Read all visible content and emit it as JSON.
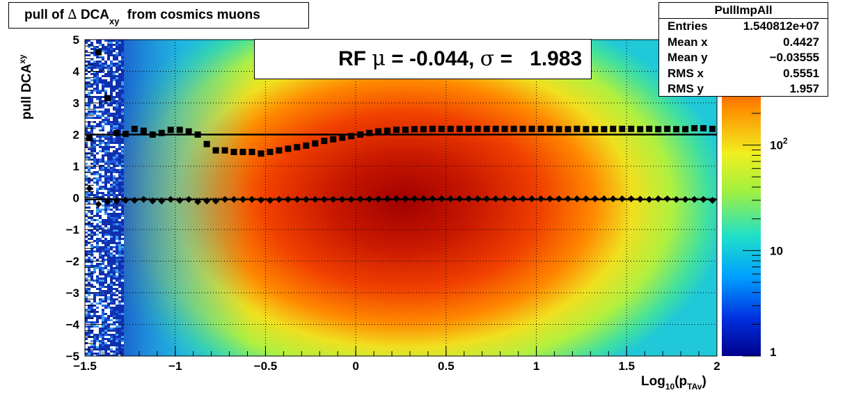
{
  "title": {
    "text": "pull of",
    "delta": "∆",
    "main": "DCA",
    "sub": "xy",
    "suffix": "from cosmics muons"
  },
  "stats": {
    "name": "PullImpAll",
    "rows": [
      {
        "label": "Entries",
        "value": "1.540812e+07"
      },
      {
        "label": "Mean x",
        "value": "0.4427"
      },
      {
        "label": "Mean y",
        "value": "−0.03555"
      },
      {
        "label": "RMS x",
        "value": "0.5551"
      },
      {
        "label": "RMS y",
        "value": "1.957"
      }
    ]
  },
  "legend": {
    "prefix": "RF",
    "mu": "μ",
    "mid": "= -0.044,",
    "sigma": "σ",
    "tail": "=   1.983"
  },
  "axes": {
    "xlabel_main": "Log",
    "xlabel_sub1": "10",
    "xlabel_open": "(p",
    "xlabel_sub2": "TAv",
    "xlabel_close": ")",
    "ylabel_main": "pull DCA",
    "ylabel_sub": "xy"
  },
  "colors": {
    "grid": "#000000",
    "markers": "#000000"
  },
  "chart_data": {
    "type": "heatmap",
    "xlim": [
      -1.5,
      2
    ],
    "ylim": [
      -5,
      5
    ],
    "zscale": "log",
    "zlim": [
      1,
      1000
    ],
    "grid": true,
    "x_ticks": [
      "−1.5",
      "−1",
      "−0.5",
      "0",
      "0.5",
      "1",
      "1.5",
      "2"
    ],
    "y_ticks": [
      "−5",
      "−4",
      "−3",
      "−2",
      "−1",
      "0",
      "1",
      "2",
      "3",
      "4",
      "5"
    ],
    "z_ticks": [
      "1",
      "10",
      "10^2"
    ],
    "series": [
      {
        "marker": "square",
        "x": [
          -1.475,
          -1.425,
          -1.375,
          -1.325,
          -1.275,
          -1.225,
          -1.175,
          -1.125,
          -1.075,
          -1.025,
          -0.975,
          -0.925,
          -0.875,
          -0.825,
          -0.775,
          -0.725,
          -0.675,
          -0.625,
          -0.575,
          -0.525,
          -0.475,
          -0.425,
          -0.375,
          -0.325,
          -0.275,
          -0.225,
          -0.175,
          -0.125,
          -0.075,
          -0.025,
          0.025,
          0.075,
          0.125,
          0.175,
          0.225,
          0.275,
          0.325,
          0.375,
          0.425,
          0.475,
          0.525,
          0.575,
          0.625,
          0.675,
          0.725,
          0.775,
          0.825,
          0.875,
          0.925,
          0.975,
          1.025,
          1.075,
          1.125,
          1.175,
          1.225,
          1.275,
          1.325,
          1.375,
          1.425,
          1.475,
          1.525,
          1.575,
          1.625,
          1.675,
          1.725,
          1.775,
          1.825,
          1.875,
          1.925,
          1.975
        ],
        "y": [
          1.9,
          4.6,
          3.15,
          2.05,
          2.02,
          2.18,
          2.12,
          2.0,
          2.05,
          2.15,
          2.15,
          2.1,
          2.0,
          1.7,
          1.5,
          1.5,
          1.45,
          1.45,
          1.45,
          1.4,
          1.45,
          1.5,
          1.55,
          1.6,
          1.65,
          1.72,
          1.8,
          1.85,
          1.9,
          1.95,
          2.0,
          2.05,
          2.1,
          2.12,
          2.15,
          2.15,
          2.17,
          2.17,
          2.18,
          2.18,
          2.18,
          2.18,
          2.18,
          2.18,
          2.18,
          2.18,
          2.18,
          2.18,
          2.18,
          2.18,
          2.18,
          2.18,
          2.17,
          2.17,
          2.18,
          2.17,
          2.17,
          2.17,
          2.18,
          2.18,
          2.18,
          2.17,
          2.18,
          2.17,
          2.18,
          2.17,
          2.17,
          2.2,
          2.2,
          2.18
        ]
      },
      {
        "marker": "diamond",
        "x": [
          -1.475,
          -1.425,
          -1.375,
          -1.325,
          -1.275,
          -1.225,
          -1.175,
          -1.125,
          -1.075,
          -1.025,
          -0.975,
          -0.925,
          -0.875,
          -0.825,
          -0.775,
          -0.725,
          -0.675,
          -0.625,
          -0.575,
          -0.525,
          -0.475,
          -0.425,
          -0.375,
          -0.325,
          -0.275,
          -0.225,
          -0.175,
          -0.125,
          -0.075,
          -0.025,
          0.025,
          0.075,
          0.125,
          0.175,
          0.225,
          0.275,
          0.325,
          0.375,
          0.425,
          0.475,
          0.525,
          0.575,
          0.625,
          0.675,
          0.725,
          0.775,
          0.825,
          0.875,
          0.925,
          0.975,
          1.025,
          1.075,
          1.125,
          1.175,
          1.225,
          1.275,
          1.325,
          1.375,
          1.425,
          1.475,
          1.525,
          1.575,
          1.625,
          1.675,
          1.725,
          1.775,
          1.825,
          1.875,
          1.925,
          1.975
        ],
        "y": [
          0.3,
          -0.2,
          -0.12,
          -0.1,
          -0.08,
          -0.08,
          -0.05,
          -0.1,
          -0.1,
          -0.05,
          -0.08,
          -0.05,
          -0.12,
          -0.1,
          -0.1,
          -0.05,
          -0.05,
          -0.05,
          -0.05,
          -0.07,
          -0.08,
          -0.05,
          -0.05,
          -0.05,
          -0.05,
          -0.05,
          -0.05,
          -0.05,
          -0.05,
          -0.05,
          -0.04,
          -0.04,
          -0.04,
          -0.03,
          -0.03,
          -0.03,
          -0.03,
          -0.03,
          -0.03,
          -0.03,
          -0.03,
          -0.03,
          -0.03,
          -0.03,
          -0.03,
          -0.03,
          -0.03,
          -0.03,
          -0.03,
          -0.03,
          -0.03,
          -0.03,
          -0.03,
          -0.03,
          -0.03,
          -0.03,
          -0.03,
          -0.03,
          -0.03,
          -0.03,
          -0.03,
          -0.04,
          -0.05,
          -0.03,
          -0.03,
          -0.05,
          -0.05,
          -0.05,
          -0.05,
          -0.08
        ]
      }
    ],
    "reference_lines": [
      {
        "y": 2.0
      },
      {
        "y": -0.05
      }
    ]
  }
}
